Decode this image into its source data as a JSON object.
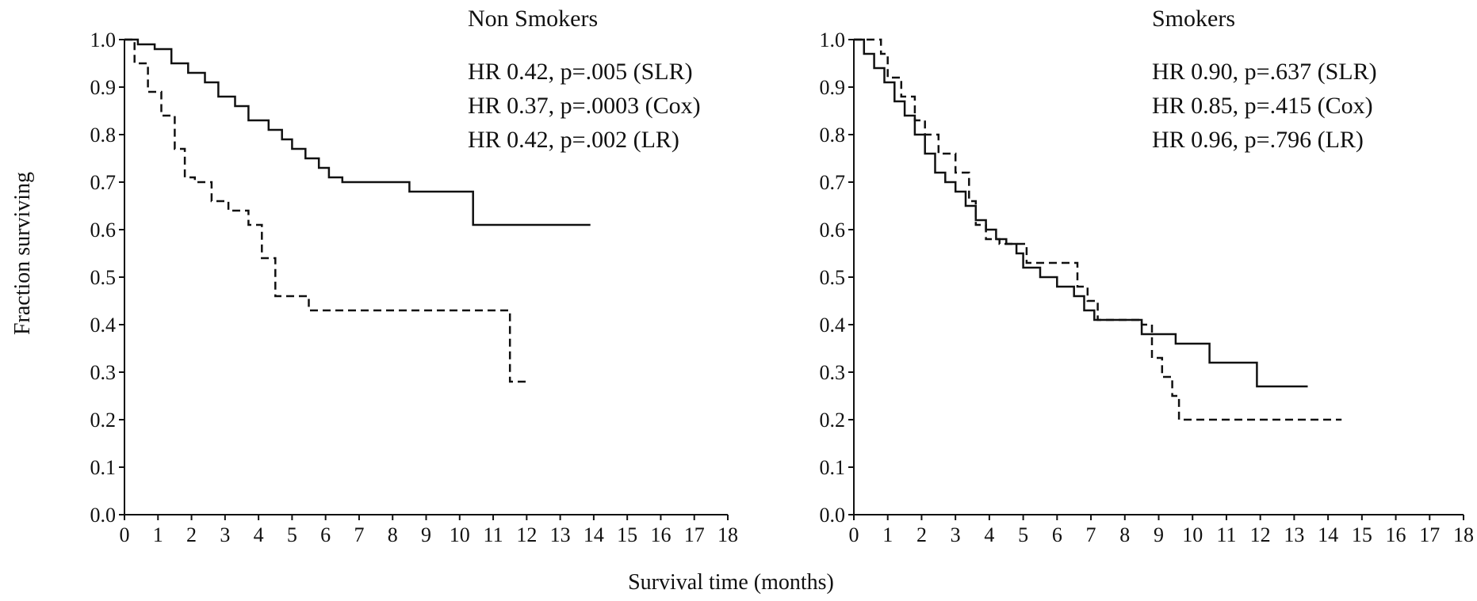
{
  "figure": {
    "xlabel": "Survival time (months)",
    "ylabel": "Fraction surviving"
  },
  "chart_data": [
    {
      "type": "line",
      "step": true,
      "title": "Non Smokers",
      "annotations": [
        "HR 0.42, p=.005 (SLR)",
        "HR 0.37, p=.0003 (Cox)",
        "HR 0.42, p=.002 (LR)"
      ],
      "xlabel": "Survival time (months)",
      "ylabel": "Fraction surviving",
      "xlim": [
        0,
        18
      ],
      "ylim": [
        0,
        1
      ],
      "xticks": [
        "0",
        "1",
        "2",
        "3",
        "4",
        "5",
        "6",
        "7",
        "8",
        "9",
        "10",
        "11",
        "12",
        "13",
        "14",
        "15",
        "16",
        "17",
        "18"
      ],
      "yticks": [
        "0.0",
        "0.1",
        "0.2",
        "0.3",
        "0.4",
        "0.5",
        "0.6",
        "0.7",
        "0.8",
        "0.9",
        "1.0"
      ],
      "grid": false,
      "series": [
        {
          "style": "solid",
          "x": [
            0,
            0.4,
            0.9,
            1.4,
            1.9,
            2.4,
            2.8,
            3.3,
            3.7,
            4.3,
            4.7,
            5.0,
            5.4,
            5.8,
            6.1,
            6.5,
            8.5,
            10.4,
            13.9
          ],
          "y": [
            1.0,
            0.99,
            0.98,
            0.95,
            0.93,
            0.91,
            0.88,
            0.86,
            0.83,
            0.81,
            0.79,
            0.77,
            0.75,
            0.73,
            0.71,
            0.7,
            0.68,
            0.61,
            0.61
          ]
        },
        {
          "style": "dashed",
          "x": [
            0,
            0.3,
            0.7,
            1.1,
            1.5,
            1.8,
            2.1,
            2.6,
            3.1,
            3.7,
            4.1,
            4.5,
            5.5,
            11.5,
            12.1
          ],
          "y": [
            1.0,
            0.95,
            0.89,
            0.84,
            0.77,
            0.71,
            0.7,
            0.66,
            0.64,
            0.61,
            0.54,
            0.46,
            0.43,
            0.28,
            0.28
          ]
        }
      ]
    },
    {
      "type": "line",
      "step": true,
      "title": "Smokers",
      "annotations": [
        "HR 0.90, p=.637 (SLR)",
        "HR 0.85, p=.415 (Cox)",
        "HR 0.96, p=.796 (LR)"
      ],
      "xlabel": "Survival time (months)",
      "ylabel": "Fraction surviving",
      "xlim": [
        0,
        18
      ],
      "ylim": [
        0,
        1
      ],
      "xticks": [
        "0",
        "1",
        "2",
        "3",
        "4",
        "5",
        "6",
        "7",
        "8",
        "9",
        "10",
        "11",
        "12",
        "13",
        "14",
        "15",
        "16",
        "17",
        "18"
      ],
      "yticks": [
        "0.0",
        "0.1",
        "0.2",
        "0.3",
        "0.4",
        "0.5",
        "0.6",
        "0.7",
        "0.8",
        "0.9",
        "1.0"
      ],
      "grid": false,
      "series": [
        {
          "style": "solid",
          "x": [
            0,
            0.3,
            0.6,
            0.9,
            1.2,
            1.5,
            1.8,
            2.1,
            2.4,
            2.7,
            3.0,
            3.3,
            3.6,
            3.9,
            4.2,
            4.5,
            4.8,
            5.0,
            5.5,
            6.0,
            6.5,
            6.8,
            7.1,
            8.5,
            9.5,
            10.5,
            11.9,
            13.4
          ],
          "y": [
            1.0,
            0.97,
            0.94,
            0.91,
            0.87,
            0.84,
            0.8,
            0.76,
            0.72,
            0.7,
            0.68,
            0.65,
            0.62,
            0.6,
            0.58,
            0.57,
            0.55,
            0.52,
            0.5,
            0.48,
            0.46,
            0.43,
            0.41,
            0.38,
            0.36,
            0.32,
            0.27,
            0.27
          ]
        },
        {
          "style": "dashed",
          "x": [
            0,
            0.8,
            1.0,
            1.4,
            1.8,
            2.1,
            2.5,
            3.0,
            3.4,
            3.6,
            3.9,
            4.3,
            4.9,
            5.1,
            6.0,
            6.6,
            6.9,
            7.2,
            8.5,
            8.8,
            9.1,
            9.4,
            9.6,
            14.4
          ],
          "y": [
            1.0,
            0.97,
            0.92,
            0.88,
            0.83,
            0.8,
            0.76,
            0.72,
            0.66,
            0.61,
            0.58,
            0.57,
            0.57,
            0.53,
            0.53,
            0.48,
            0.45,
            0.41,
            0.4,
            0.33,
            0.29,
            0.25,
            0.2,
            0.2
          ]
        }
      ]
    }
  ]
}
